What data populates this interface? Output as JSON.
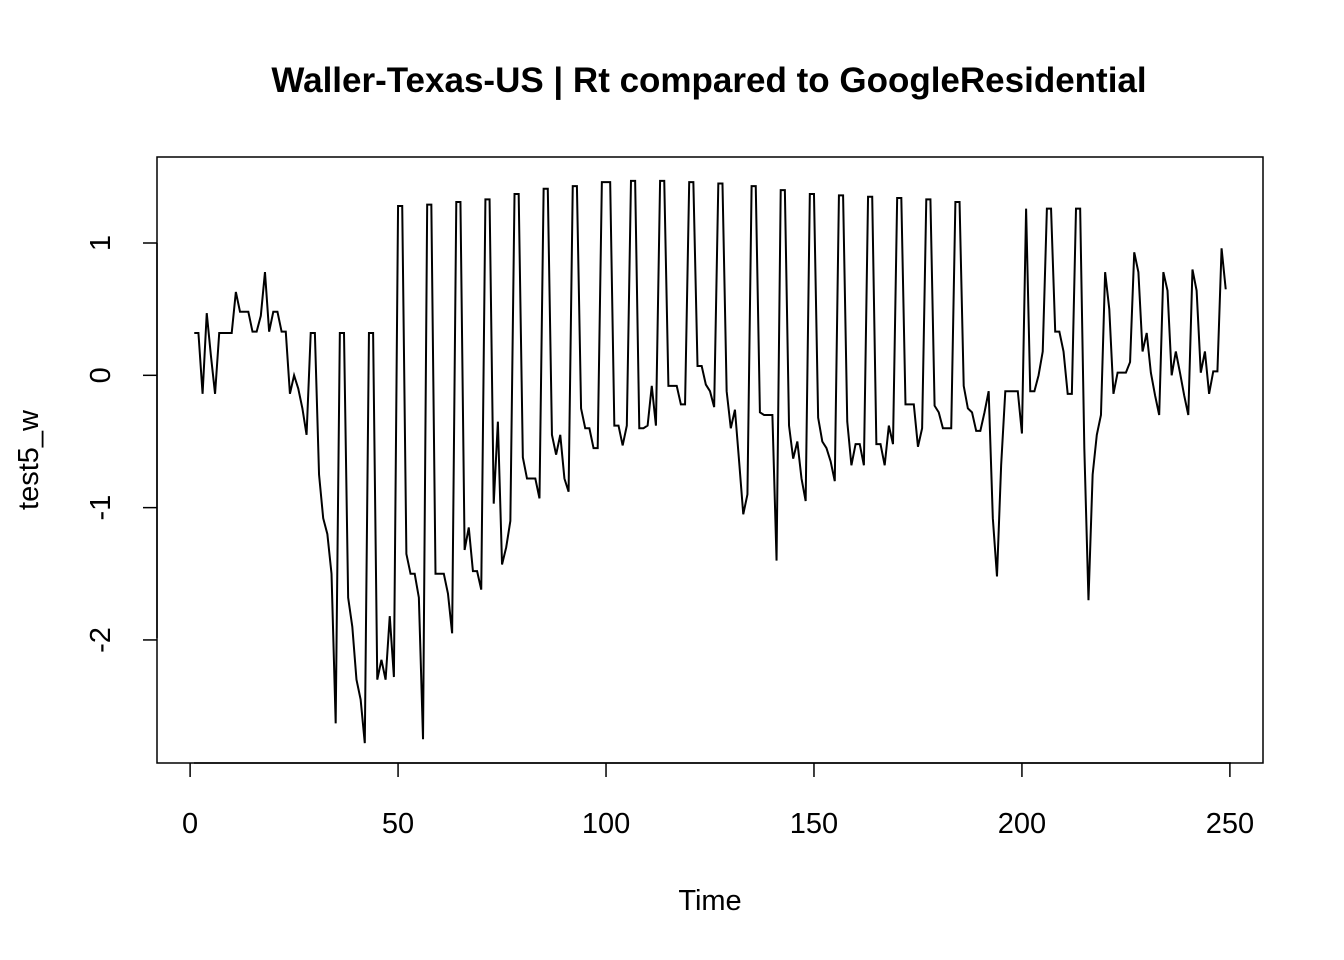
{
  "chart_data": {
    "type": "line",
    "title": "Waller-Texas-US | Rt compared to GoogleResidential",
    "xlabel": "Time",
    "ylabel": "test5_w",
    "xlim": [
      -7.96,
      257.96
    ],
    "ylim": [
      -2.93,
      1.65
    ],
    "xticks": [
      0,
      50,
      100,
      150,
      200,
      250
    ],
    "yticks": [
      -2,
      -1,
      0,
      1
    ],
    "xtick_labels": [
      "0",
      "50",
      "100",
      "150",
      "200",
      "250"
    ],
    "ytick_labels": [
      "-2",
      "-1",
      "0",
      "1"
    ],
    "grid": false,
    "legend": "none",
    "line_color": "#000000",
    "series": [
      {
        "x_start": 1,
        "values": [
          0.32,
          0.32,
          -0.14,
          0.47,
          0.15,
          -0.14,
          0.32,
          0.32,
          0.32,
          0.32,
          0.63,
          0.48,
          0.48,
          0.48,
          0.33,
          0.33,
          0.45,
          0.78,
          0.33,
          0.48,
          0.48,
          0.33,
          0.33,
          -0.14,
          0.0,
          -0.1,
          -0.25,
          -0.45,
          0.32,
          0.32,
          -0.75,
          -1.08,
          -1.2,
          -1.5,
          -2.63,
          0.32,
          0.32,
          -1.68,
          -1.9,
          -2.3,
          -2.45,
          -2.78,
          0.32,
          0.32,
          -2.3,
          -2.15,
          -2.3,
          -1.82,
          -2.28,
          1.28,
          1.28,
          -1.35,
          -1.5,
          -1.5,
          -1.68,
          -2.75,
          1.29,
          1.29,
          -1.5,
          -1.5,
          -1.5,
          -1.65,
          -1.95,
          1.31,
          1.31,
          -1.32,
          -1.15,
          -1.48,
          -1.48,
          -1.62,
          1.33,
          1.33,
          -0.97,
          -0.35,
          -1.43,
          -1.3,
          -1.1,
          1.37,
          1.37,
          -0.62,
          -0.78,
          -0.78,
          -0.78,
          -0.93,
          1.41,
          1.41,
          -0.45,
          -0.6,
          -0.45,
          -0.78,
          -0.88,
          1.43,
          1.43,
          -0.25,
          -0.4,
          -0.4,
          -0.55,
          -0.55,
          1.46,
          1.46,
          1.46,
          -0.38,
          -0.38,
          -0.53,
          -0.38,
          1.47,
          1.47,
          -0.4,
          -0.4,
          -0.38,
          -0.08,
          -0.38,
          1.47,
          1.47,
          -0.08,
          -0.08,
          -0.08,
          -0.22,
          -0.22,
          1.46,
          1.46,
          0.07,
          0.07,
          -0.07,
          -0.12,
          -0.24,
          1.45,
          1.45,
          -0.12,
          -0.4,
          -0.26,
          -0.65,
          -1.05,
          -0.9,
          1.43,
          1.43,
          -0.28,
          -0.3,
          -0.3,
          -0.3,
          -1.4,
          1.4,
          1.4,
          -0.38,
          -0.63,
          -0.5,
          -0.78,
          -0.95,
          1.37,
          1.37,
          -0.32,
          -0.5,
          -0.55,
          -0.65,
          -0.8,
          1.36,
          1.36,
          -0.35,
          -0.68,
          -0.52,
          -0.52,
          -0.68,
          1.35,
          1.35,
          -0.52,
          -0.52,
          -0.68,
          -0.38,
          -0.52,
          1.34,
          1.34,
          -0.22,
          -0.22,
          -0.22,
          -0.54,
          -0.4,
          1.33,
          1.33,
          -0.23,
          -0.28,
          -0.4,
          -0.4,
          -0.4,
          1.31,
          1.31,
          -0.08,
          -0.25,
          -0.28,
          -0.42,
          -0.42,
          -0.28,
          -0.12,
          -1.08,
          -1.52,
          -0.68,
          -0.12,
          -0.12,
          -0.12,
          -0.12,
          -0.44,
          1.26,
          -0.12,
          -0.12,
          0.0,
          0.18,
          1.26,
          1.26,
          0.33,
          0.33,
          0.18,
          -0.14,
          -0.14,
          1.26,
          1.26,
          -0.55,
          -1.7,
          -0.75,
          -0.45,
          -0.3,
          0.78,
          0.5,
          -0.14,
          0.02,
          0.02,
          0.02,
          0.1,
          0.93,
          0.78,
          0.18,
          0.32,
          0.02,
          -0.15,
          -0.3,
          0.78,
          0.64,
          0.0,
          0.18,
          0.02,
          -0.15,
          -0.3,
          0.8,
          0.64,
          0.02,
          0.18,
          -0.14,
          0.03,
          0.03,
          0.96,
          0.65
        ]
      }
    ]
  }
}
